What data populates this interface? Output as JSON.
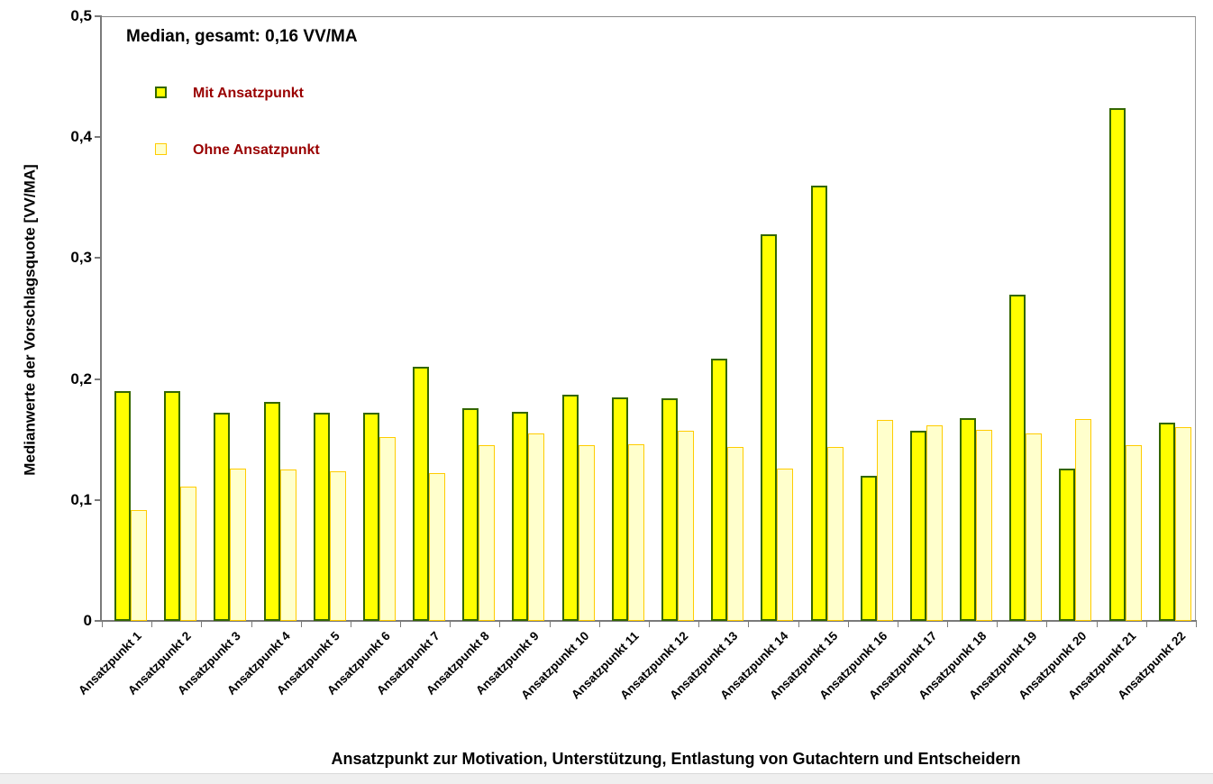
{
  "chart_data": {
    "type": "bar",
    "annotation": "Median, gesamt: 0,16 VV/MA",
    "xlabel": "Ansatzpunkt zur Motivation, Unterstützung, Entlastung von Gutachtern und Entscheidern",
    "ylabel": "Medianwerte der Vorschlagsquote [VV/MA]",
    "ylim": [
      0,
      0.5
    ],
    "yticks": [
      {
        "value": 0,
        "label": "0"
      },
      {
        "value": 0.1,
        "label": "0,1"
      },
      {
        "value": 0.2,
        "label": "0,2"
      },
      {
        "value": 0.3,
        "label": "0,3"
      },
      {
        "value": 0.4,
        "label": "0,4"
      },
      {
        "value": 0.5,
        "label": "0,5"
      }
    ],
    "grid": false,
    "legend_position": "inside-top-left",
    "categories": [
      "Ansatzpunkt 1",
      "Ansatzpunkt 2",
      "Ansatzpunkt 3",
      "Ansatzpunkt 4",
      "Ansatzpunkt 5",
      "Ansatzpunkt 6",
      "Ansatzpunkt 7",
      "Ansatzpunkt 8",
      "Ansatzpunkt 9",
      "Ansatzpunkt 10",
      "Ansatzpunkt 11",
      "Ansatzpunkt 12",
      "Ansatzpunkt 13",
      "Ansatzpunkt 14",
      "Ansatzpunkt 15",
      "Ansatzpunkt 16",
      "Ansatzpunkt 17",
      "Ansatzpunkt 18",
      "Ansatzpunkt 19",
      "Ansatzpunkt 20",
      "Ansatzpunkt 21",
      "Ansatzpunkt 22"
    ],
    "series": [
      {
        "name": "Mit Ansatzpunkt",
        "fill": "#FFFF00",
        "border": "#336600",
        "values": [
          0.19,
          0.19,
          0.172,
          0.181,
          0.172,
          0.172,
          0.21,
          0.176,
          0.173,
          0.187,
          0.185,
          0.184,
          0.217,
          0.32,
          0.36,
          0.12,
          0.157,
          0.168,
          0.27,
          0.126,
          0.424,
          0.164
        ]
      },
      {
        "name": "Ohne Ansatzpunkt",
        "fill": "#FFFFCC",
        "border": "#FFCC00",
        "values": [
          0.092,
          0.111,
          0.126,
          0.125,
          0.124,
          0.152,
          0.122,
          0.145,
          0.155,
          0.145,
          0.146,
          0.157,
          0.144,
          0.126,
          0.144,
          0.166,
          0.162,
          0.158,
          0.155,
          0.167,
          0.145,
          0.16
        ]
      }
    ]
  },
  "colors": {
    "legend_text": "#990000",
    "axis": "#7a7a7a",
    "text": "#000000",
    "background": "#ffffff",
    "bottom_strip": "#efefef"
  }
}
